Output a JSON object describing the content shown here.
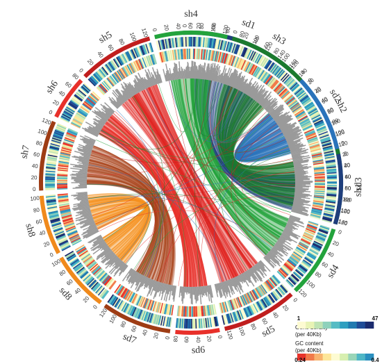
{
  "chromosomes": [
    {
      "name": "sd1",
      "start": 357,
      "end": 403,
      "color": "#1f3e7c",
      "ticks": [
        "0",
        "20",
        "40",
        "60",
        "80",
        "100",
        "120",
        "140",
        "160"
      ]
    },
    {
      "name": "sd2",
      "start": 405,
      "end": 433,
      "color": "#2a73bb",
      "ticks": [
        "0",
        "20",
        "40",
        "60",
        "80",
        "100",
        "120"
      ]
    },
    {
      "name": "sd3",
      "start": 435,
      "end": 466,
      "color": "#1b7a2e",
      "ticks": [
        "0",
        "20",
        "40",
        "60",
        "80",
        "100",
        "120",
        "140"
      ]
    },
    {
      "name": "sd4",
      "start": 468,
      "end": 496,
      "color": "#23a33c",
      "ticks": [
        "0",
        "20",
        "40",
        "60",
        "80",
        "100",
        "120"
      ]
    },
    {
      "name": "sd5",
      "start": 498,
      "end": 527,
      "color": "#c01e1e",
      "ticks": [
        "0",
        "20",
        "40",
        "60",
        "80",
        "100",
        "120"
      ]
    },
    {
      "name": "sd6",
      "start": 529,
      "end": 546,
      "color": "#e8302a",
      "ticks": [
        "0",
        "20",
        "40",
        "60",
        "80"
      ]
    },
    {
      "name": "sd7",
      "start": 548,
      "end": 575,
      "color": "#9e3c14",
      "ticks": [
        "0",
        "20",
        "40",
        "60",
        "80",
        "100",
        "120"
      ]
    },
    {
      "name": "sd8",
      "start": 577,
      "end": 600,
      "color": "#f08a1c",
      "ticks": [
        "0",
        "20",
        "40",
        "60",
        "80",
        "100"
      ]
    },
    {
      "name": "sh8",
      "start": 602,
      "end": 625,
      "color": "#f08a1c",
      "ticks": [
        "0",
        "20",
        "40",
        "60",
        "80",
        "100"
      ]
    },
    {
      "name": "sh7",
      "start": 627,
      "end": 654,
      "color": "#9e3c14",
      "ticks": [
        "0",
        "20",
        "40",
        "60",
        "80",
        "100",
        "120"
      ]
    },
    {
      "name": "sh6",
      "start": 656,
      "end": 673,
      "color": "#e8302a",
      "ticks": [
        "0",
        "20",
        "40",
        "60",
        "80"
      ]
    },
    {
      "name": "sh5",
      "start": 675,
      "end": 704,
      "color": "#c01e1e",
      "ticks": [
        "0",
        "20",
        "40",
        "60",
        "80",
        "100",
        "120"
      ]
    },
    {
      "name": "sh4",
      "start": 706,
      "end": 734,
      "color": "#23a33c",
      "ticks": [
        "0",
        "20",
        "40",
        "60",
        "80",
        "100",
        "120"
      ]
    },
    {
      "name": "sh3",
      "start": 736,
      "end": 767,
      "color": "#1b7a2e",
      "ticks": [
        "0",
        "20",
        "40",
        "60",
        "80",
        "100",
        "120",
        "140"
      ]
    },
    {
      "name": "sh2",
      "start": 769,
      "end": 797,
      "color": "#2a73bb",
      "ticks": [
        "0",
        "20",
        "40",
        "60",
        "80",
        "100",
        "120"
      ]
    },
    {
      "name": "sh1",
      "start": 799,
      "end": 826,
      "color": "#1f3e7c",
      "ticks": [
        "0",
        "20",
        "40",
        "60",
        "80",
        "100",
        "120"
      ]
    }
  ],
  "legend": {
    "gene_density": {
      "label_line1": "Gene density",
      "label_line2": "(per 40Kb)",
      "min": "1",
      "max": "47",
      "colors": [
        "#fdfbd2",
        "#e8f3b5",
        "#bfe3b3",
        "#8ed1bb",
        "#56bcc4",
        "#2f9fc0",
        "#207ab0",
        "#1f4c97",
        "#1b2b6e"
      ]
    },
    "gc_content": {
      "label_line1": "GC content",
      "label_line2": "(per 40Kb)",
      "min": "0.24",
      "max": "0.4",
      "colors": [
        "#e8332b",
        "#f17a4a",
        "#f8b36e",
        "#fde69a",
        "#fdfbd2",
        "#d7efb0",
        "#99d5b8",
        "#4fb7c6",
        "#2a8fbf"
      ]
    }
  },
  "links": [
    {
      "a": [
        362,
        398
      ],
      "b": [
        804,
        824
      ],
      "color": "#1f3e7c"
    },
    {
      "a": [
        408,
        430
      ],
      "b": [
        772,
        794
      ],
      "color": "#2a73bb"
    },
    {
      "a": [
        438,
        463
      ],
      "b": [
        739,
        764
      ],
      "color": "#1b7a2e"
    },
    {
      "a": [
        470,
        494
      ],
      "b": [
        709,
        731
      ],
      "color": "#23a33c"
    },
    {
      "a": [
        500,
        524
      ],
      "b": [
        678,
        701
      ],
      "color": "#e0231f"
    },
    {
      "a": [
        531,
        544
      ],
      "b": [
        658,
        671
      ],
      "color": "#e8302a"
    },
    {
      "a": [
        550,
        572
      ],
      "b": [
        629,
        651
      ],
      "color": "#a8431a"
    },
    {
      "a": [
        579,
        598
      ],
      "b": [
        604,
        623
      ],
      "color": "#f5901d"
    }
  ]
}
